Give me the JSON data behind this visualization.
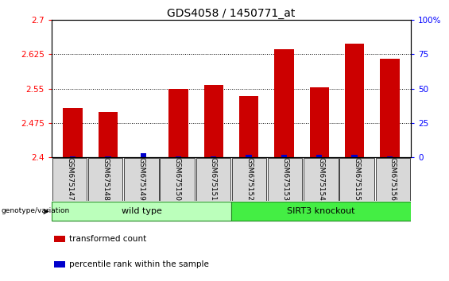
{
  "title": "GDS4058 / 1450771_at",
  "samples": [
    "GSM675147",
    "GSM675148",
    "GSM675149",
    "GSM675150",
    "GSM675151",
    "GSM675152",
    "GSM675153",
    "GSM675154",
    "GSM675155",
    "GSM675156"
  ],
  "transformed_count": [
    2.507,
    2.499,
    2.4,
    2.55,
    2.558,
    2.534,
    2.636,
    2.553,
    2.648,
    2.615
  ],
  "percentile_rank": [
    1,
    1,
    3,
    1,
    1,
    2,
    2,
    2,
    2,
    1
  ],
  "ylim_left": [
    2.4,
    2.7
  ],
  "ylim_right": [
    0,
    100
  ],
  "yticks_left": [
    2.4,
    2.475,
    2.55,
    2.625,
    2.7
  ],
  "ytick_labels_left": [
    "2.4",
    "2.475",
    "2.55",
    "2.625",
    "2.7"
  ],
  "yticks_right": [
    0,
    25,
    50,
    75,
    100
  ],
  "ytick_labels_right": [
    "0",
    "25",
    "50",
    "75",
    "100%"
  ],
  "grid_ticks": [
    2.475,
    2.55,
    2.625
  ],
  "bar_color": "#cc0000",
  "dot_color": "#0000cc",
  "bar_width": 0.55,
  "groups": [
    {
      "label": "wild type",
      "start": 0,
      "end": 4,
      "color": "#bbffbb"
    },
    {
      "label": "SIRT3 knockout",
      "start": 5,
      "end": 9,
      "color": "#44ee44"
    }
  ],
  "group_label": "genotype/variation",
  "legend_items": [
    {
      "color": "#cc0000",
      "label": "transformed count"
    },
    {
      "color": "#0000cc",
      "label": "percentile rank within the sample"
    }
  ],
  "title_fontsize": 10,
  "tick_fontsize": 7.5,
  "label_fontsize": 7.5,
  "sample_fontsize": 6.5,
  "group_fontsize": 8
}
